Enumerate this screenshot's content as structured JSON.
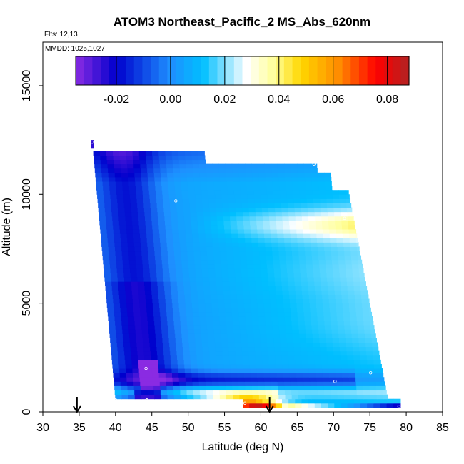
{
  "chart_data": {
    "type": "heatmap",
    "title": "ATOM3 Northeast_Pacific_2 MS_Abs_620nm",
    "subtitle_flights": "Flts: 12,13",
    "subtitle_dates": "MMDD: 1025,1027",
    "xlabel": "Latitude (deg N)",
    "ylabel": "Altitude (m)",
    "xlim": [
      30,
      85
    ],
    "ylim": [
      0,
      17000
    ],
    "x_ticks": [
      30,
      35,
      40,
      45,
      50,
      55,
      60,
      65,
      70,
      75,
      80,
      85
    ],
    "y_ticks": [
      0,
      5000,
      10000,
      15000
    ],
    "colorbar": {
      "range": [
        -0.035,
        0.088
      ],
      "ticks": [
        -0.02,
        0.0,
        0.02,
        0.04,
        0.06,
        0.08
      ],
      "tick_labels": [
        "-0.02",
        "0.00",
        "0.02",
        "0.04",
        "0.06",
        "0.08"
      ],
      "colors": [
        "#8a2be2",
        "#0000cd",
        "#1e90ff",
        "#00bfff",
        "#ffffff",
        "#ffff99",
        "#ffd700",
        "#ff8c00",
        "#ff0000",
        "#b22222"
      ]
    },
    "profiles": [
      {
        "lat_bottom": 40.0,
        "lat_top": 36.8,
        "alt_bottom": 500,
        "alt_top": 12400
      },
      {
        "lat_bottom": 77.5,
        "lat_top": 72.0,
        "alt_bottom": 500,
        "alt_top": 10200
      }
    ],
    "field_features": [
      {
        "description": "low values band along southern profile",
        "value": -0.025
      },
      {
        "description": "elevated layer near 8500 m",
        "value": 0.025
      },
      {
        "description": "surface layer maximum near 58-62 N",
        "value": 0.08
      }
    ],
    "markers": {
      "arrows_lat": [
        34.7,
        61.2
      ],
      "sample_points": [
        {
          "lat": 36.8,
          "alt": 12400
        },
        {
          "lat": 67.3,
          "alt": 11400
        },
        {
          "lat": 72.8,
          "alt": 10100
        },
        {
          "lat": 48.3,
          "alt": 9700
        },
        {
          "lat": 71.5,
          "alt": 8900
        },
        {
          "lat": 44.2,
          "alt": 2000
        },
        {
          "lat": 75.1,
          "alt": 1800
        },
        {
          "lat": 70.2,
          "alt": 1400
        },
        {
          "lat": 57.8,
          "alt": 400
        },
        {
          "lat": 79.0,
          "alt": 250
        },
        {
          "lat": 40.0,
          "alt": 550
        },
        {
          "lat": 44.3,
          "alt": 550
        }
      ]
    },
    "grid": false,
    "legend_position": "top"
  }
}
